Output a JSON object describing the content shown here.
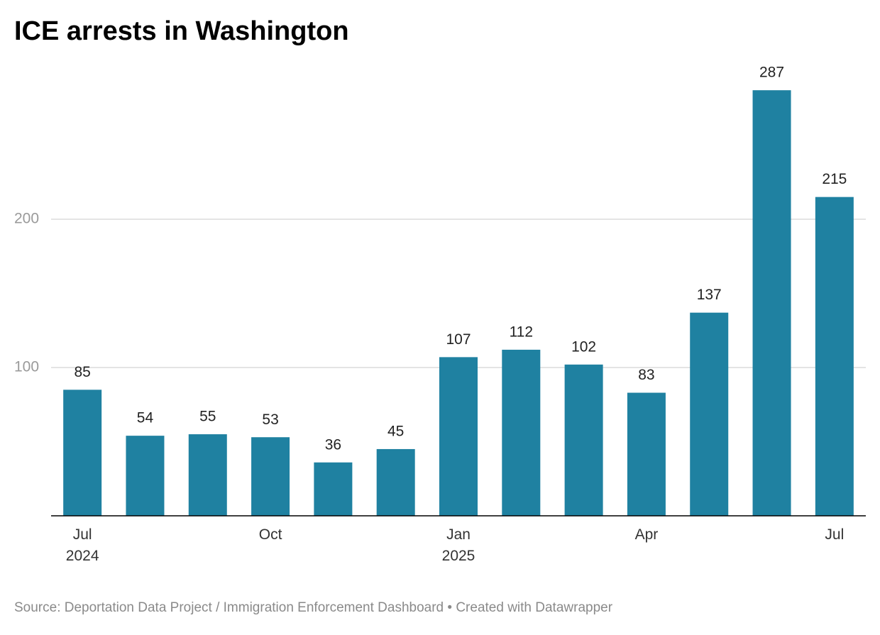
{
  "chart_data": {
    "type": "bar",
    "title": "ICE arrests in Washington",
    "categories": [
      "Jul 2024",
      null,
      null,
      "Oct",
      null,
      null,
      "Jan 2025",
      null,
      null,
      "Apr",
      null,
      null,
      "Jul"
    ],
    "values": [
      85,
      54,
      55,
      53,
      36,
      45,
      107,
      112,
      102,
      83,
      137,
      287,
      215
    ],
    "color": "#1f81a1",
    "ylim": [
      0,
      300
    ],
    "yticks": [
      100,
      200
    ],
    "grid": true,
    "source": "Source: Deportation Data Project / Immigration Enforcement Dashboard • Created with Datawrapper"
  }
}
